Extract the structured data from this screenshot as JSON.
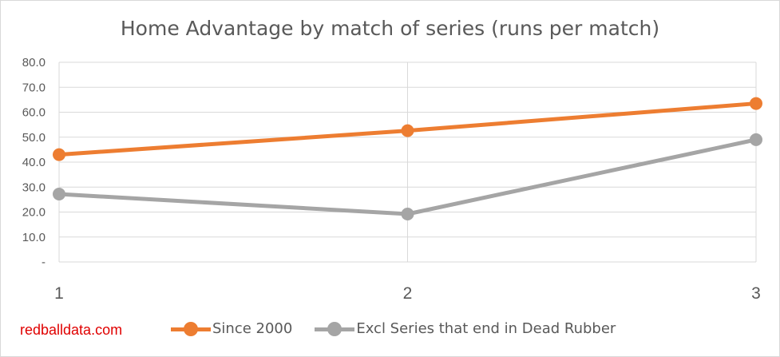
{
  "watermark": "redballdata.com",
  "chart_data": {
    "type": "line",
    "title": "Home Advantage by match of series (runs per match)",
    "xlabel": "",
    "ylabel": "",
    "categories": [
      "1",
      "2",
      "3"
    ],
    "ylim": [
      0,
      80
    ],
    "yticks": [
      0,
      10,
      20,
      30,
      40,
      50,
      60,
      70,
      80
    ],
    "ytick_labels": [
      "-",
      "10.0",
      "20.0",
      "30.0",
      "40.0",
      "50.0",
      "60.0",
      "70.0",
      "80.0"
    ],
    "grid": true,
    "legend_position": "bottom",
    "series": [
      {
        "name": "Since 2000",
        "values": [
          43.0,
          52.6,
          63.5
        ],
        "color": "#ed7d31"
      },
      {
        "name": "Excl Series that end in Dead Rubber",
        "values": [
          27.2,
          19.2,
          49.0
        ],
        "color": "#a5a5a5"
      }
    ]
  }
}
